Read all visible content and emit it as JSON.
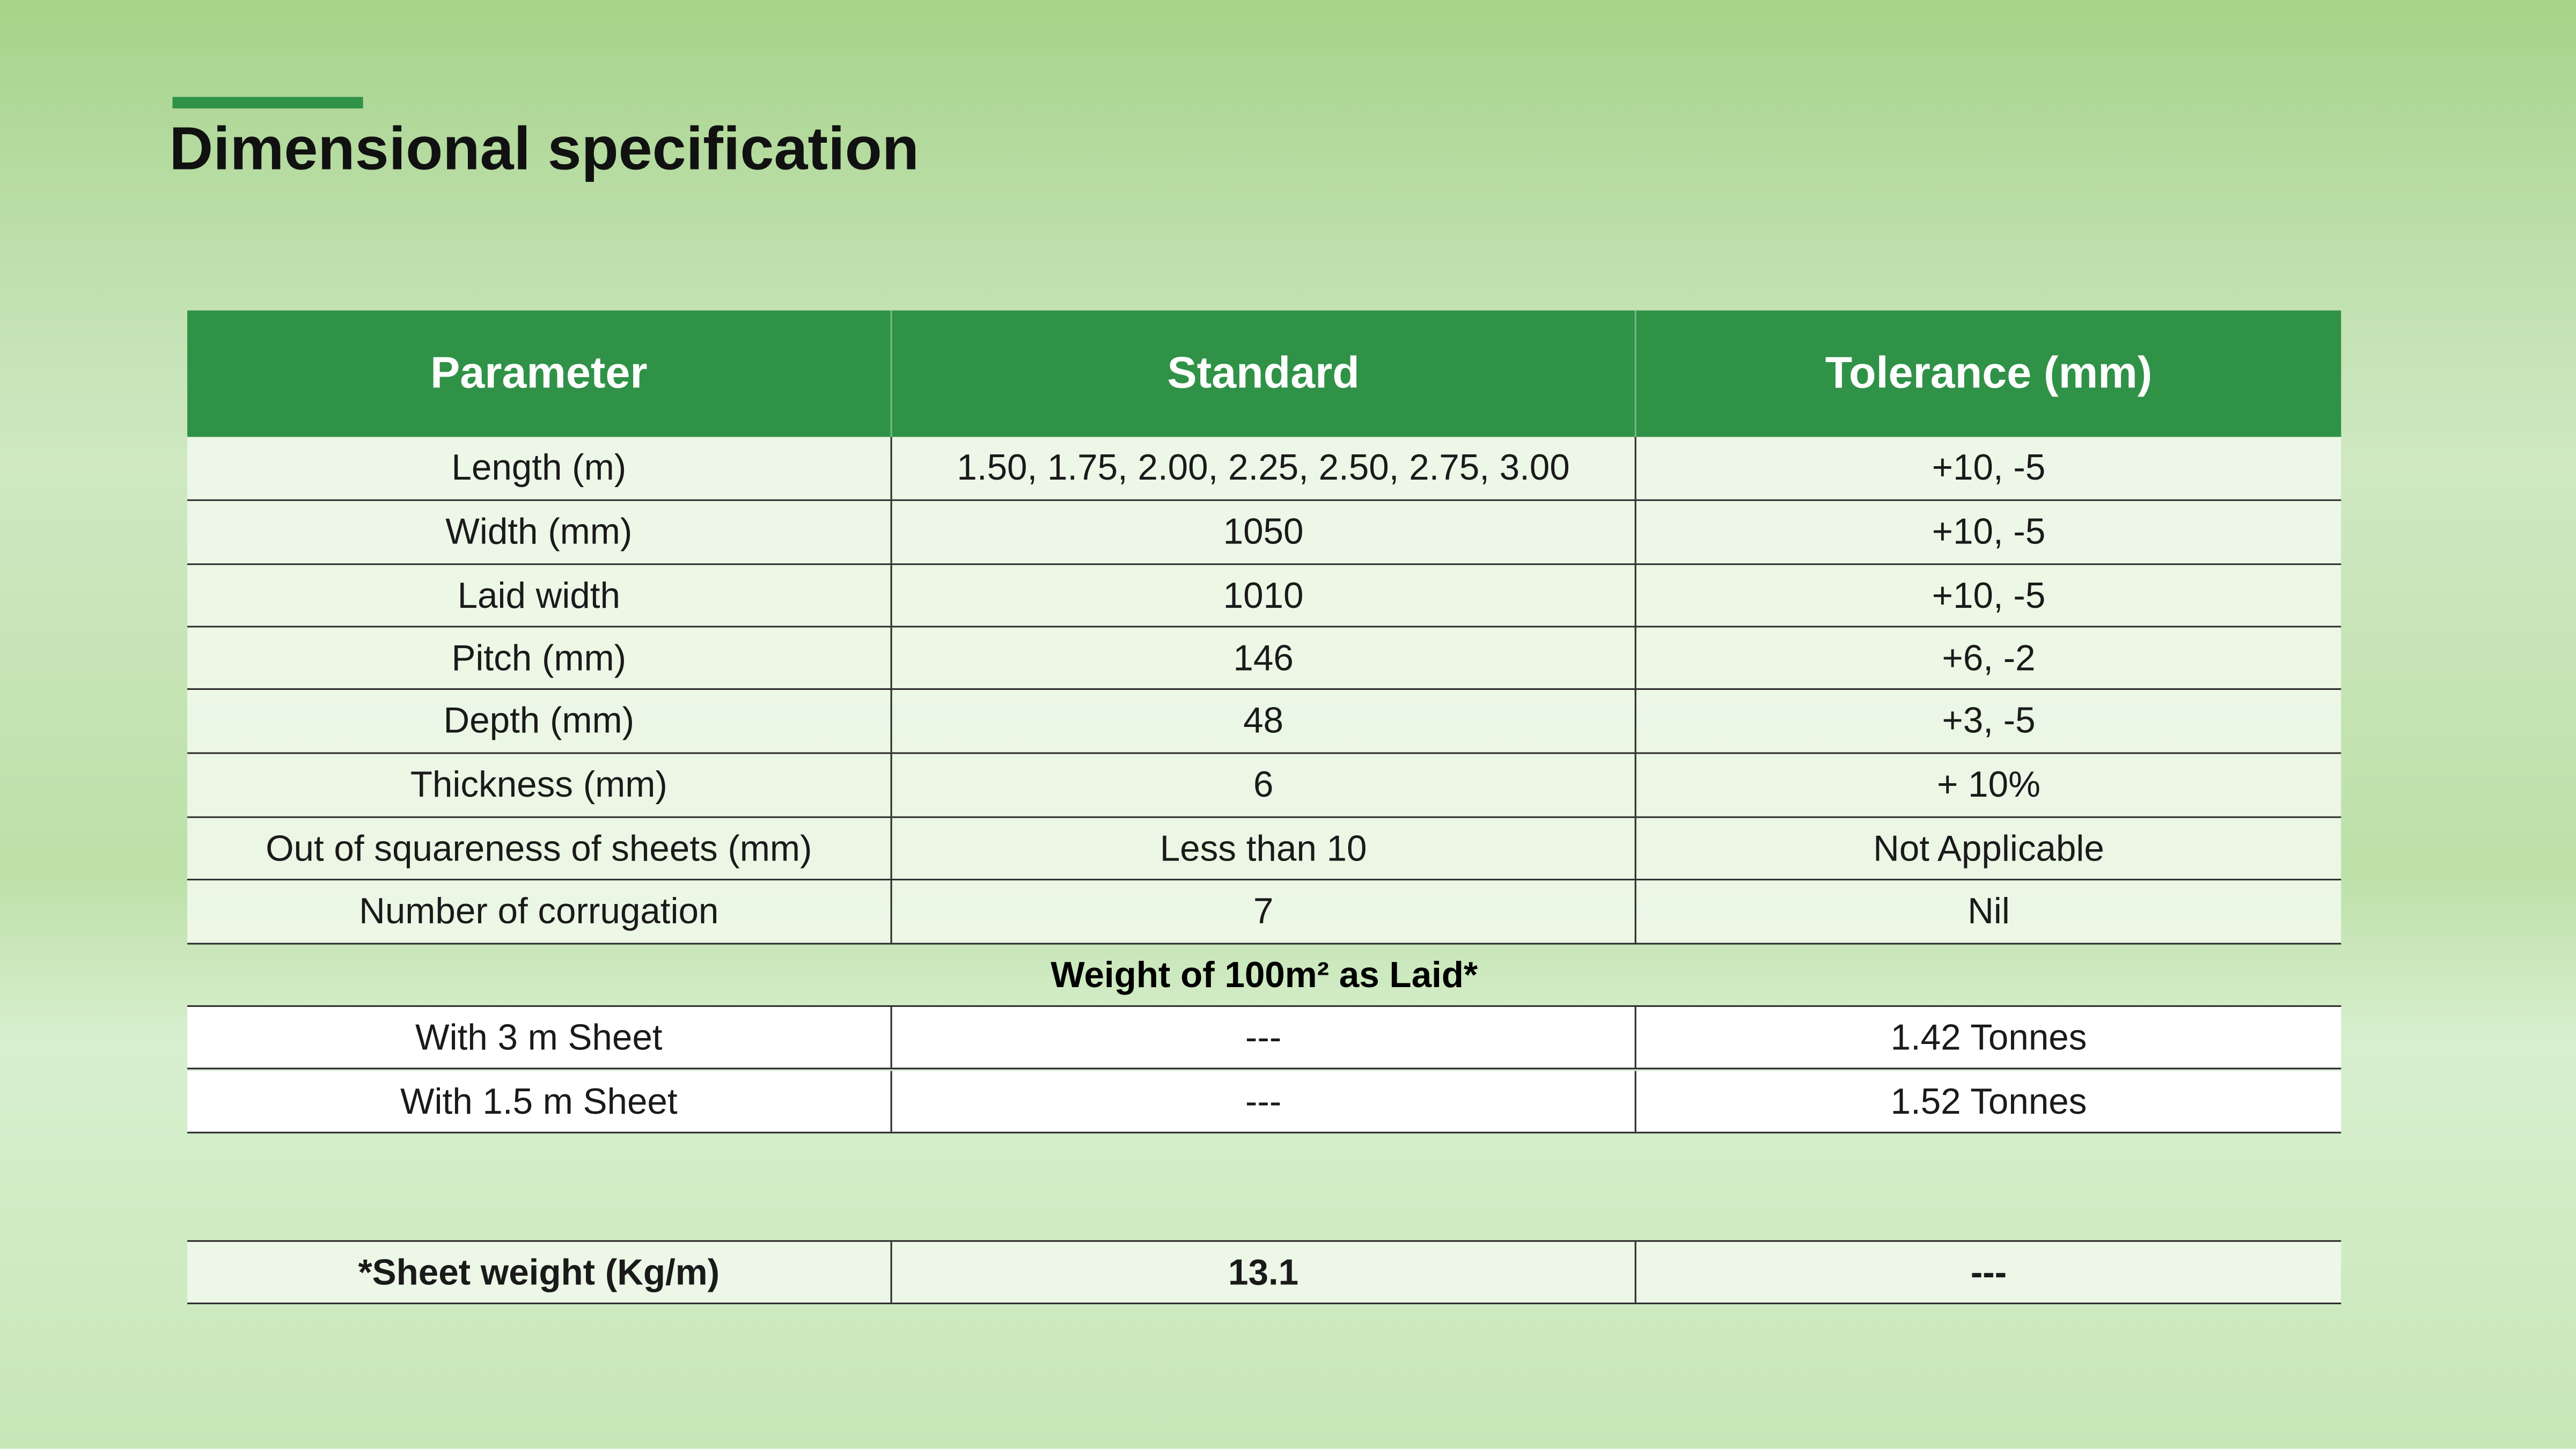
{
  "header": {
    "title": "Dimensional specification"
  },
  "table": {
    "columns": [
      "Parameter",
      "Standard",
      "Tolerance (mm)"
    ],
    "rows": [
      [
        "Length (m)",
        "1.50, 1.75, 2.00, 2.25, 2.50, 2.75, 3.00",
        "+10, -5"
      ],
      [
        "Width (mm)",
        "1050",
        "+10, -5"
      ],
      [
        "Laid width",
        "1010",
        "+10, -5"
      ],
      [
        "Pitch (mm)",
        "146",
        "+6, -2"
      ],
      [
        "Depth (mm)",
        "48",
        "+3, -5"
      ],
      [
        "Thickness (mm)",
        "6",
        "+ 10%"
      ],
      [
        "Out of squareness of sheets (mm)",
        "Less than 10",
        "Not Applicable"
      ],
      [
        "Number of corrugation",
        "7",
        "Nil"
      ]
    ],
    "section": "Weight of 100m² as Laid*",
    "weight_rows": [
      [
        "With 3 m Sheet",
        "---",
        "1.42 Tonnes"
      ],
      [
        "With 1.5 m Sheet",
        "---",
        "1.52 Tonnes"
      ]
    ],
    "footer_row": [
      "*Sheet weight (Kg/m)",
      "13.1",
      "---"
    ]
  }
}
